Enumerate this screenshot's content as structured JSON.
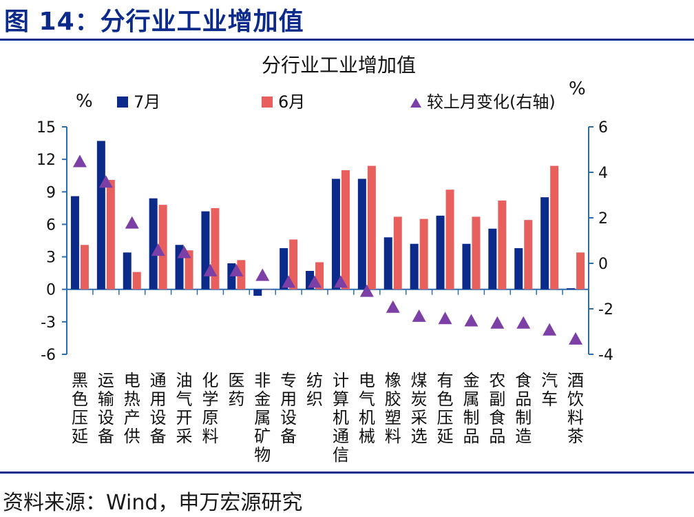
{
  "figure": {
    "title": "图 14：分行业工业增加值",
    "source": "资料来源：Wind，申万宏源研究"
  },
  "colors": {
    "jul": "#0b2a8a",
    "jun": "#e8605e",
    "change": "#7c3fa6",
    "axis": "#2b6cb0",
    "rule": "#0b2a8a"
  },
  "chart_data": {
    "type": "bar",
    "title": "分行业工业增加值",
    "left_unit": "%",
    "right_unit": "%",
    "categories": [
      "黑色压延",
      "运输设备",
      "电热产供",
      "通用设备",
      "油气开采",
      "化学原料",
      "医药",
      "非金属矿物",
      "专用设备",
      "纺织",
      "计算机通信",
      "电气机械",
      "橡胶塑料",
      "煤炭采选",
      "有色压延",
      "金属制品",
      "农副食品",
      "食品制造",
      "汽车",
      "酒饮料茶"
    ],
    "series": [
      {
        "name": "7月",
        "axis": "left",
        "type": "bar",
        "values": [
          8.6,
          13.7,
          3.4,
          8.4,
          4.1,
          7.2,
          2.4,
          -0.6,
          3.8,
          1.7,
          10.2,
          10.2,
          4.8,
          4.2,
          6.8,
          4.2,
          5.6,
          3.8,
          8.5,
          0.1
        ]
      },
      {
        "name": "6月",
        "axis": "left",
        "type": "bar",
        "values": [
          4.1,
          10.1,
          1.6,
          7.8,
          3.6,
          7.5,
          2.7,
          0.0,
          4.6,
          2.5,
          11.0,
          11.4,
          6.7,
          6.5,
          9.2,
          6.7,
          8.2,
          6.4,
          11.4,
          3.4
        ]
      },
      {
        "name": "较上月变化(右轴)",
        "axis": "right",
        "type": "scatter",
        "values": [
          4.5,
          3.6,
          1.8,
          0.6,
          0.5,
          -0.3,
          -0.3,
          -0.5,
          -0.8,
          -0.8,
          -0.8,
          -1.2,
          -1.9,
          -2.3,
          -2.4,
          -2.5,
          -2.6,
          -2.6,
          -2.9,
          -3.3
        ]
      }
    ],
    "ylim_left": [
      -6,
      15
    ],
    "yticks_left": [
      15,
      12,
      9,
      6,
      3,
      0,
      -3,
      -6
    ],
    "ylim_right": [
      -4,
      6
    ],
    "yticks_right": [
      6,
      4,
      2,
      0,
      -2,
      -4
    ],
    "legend_position": "top",
    "grid": false
  }
}
